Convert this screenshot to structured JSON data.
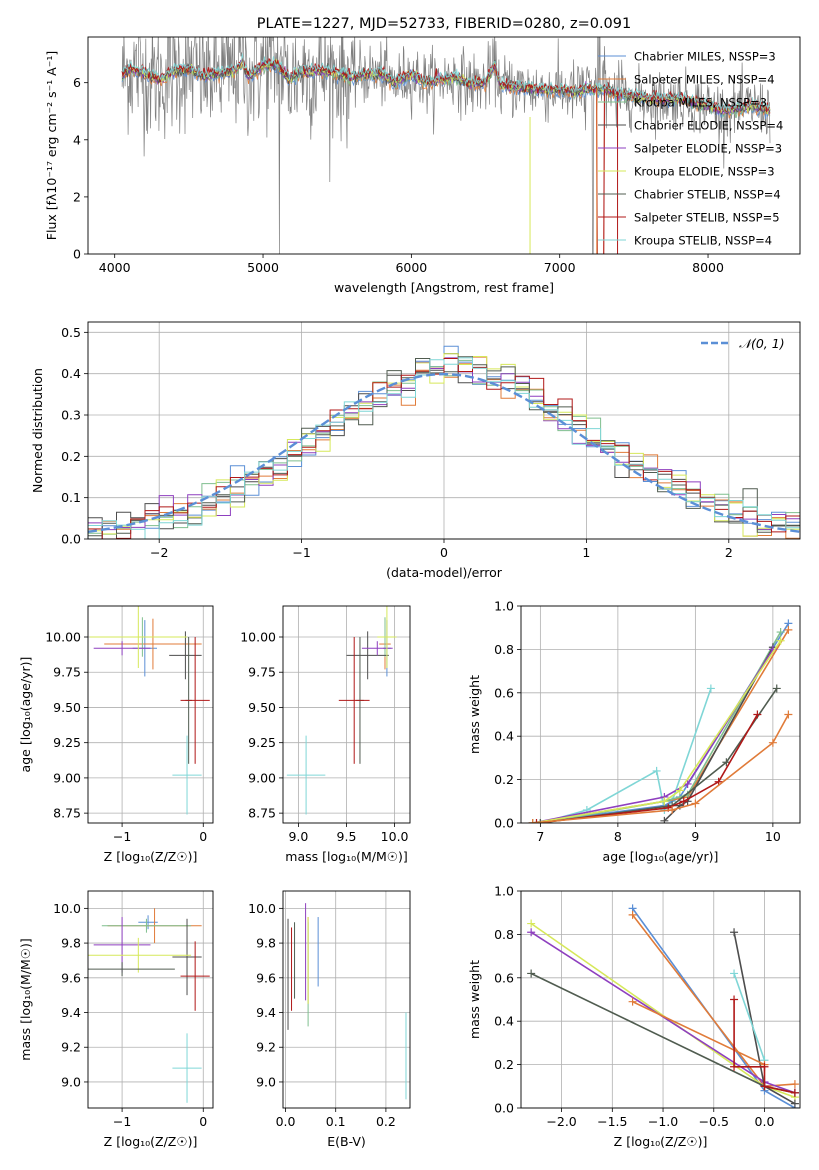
{
  "colors": {
    "Chabrier MILES": "#5b8fd6",
    "Salpeter MILES": "#e07b39",
    "Kroupa MILES": "#7fbf8e",
    "Chabrier ELODIE": "#4d4d4d",
    "Salpeter ELODIE": "#8e3fbf",
    "Kroupa ELODIE": "#d6e85a",
    "Chabrier STELIB": "#505c50",
    "Salpeter STELIB": "#b01818",
    "Kroupa STELIB": "#7fd6d6",
    "normal": "#5b8fd6",
    "data": "#7f7f7f"
  },
  "chart_data": [
    {
      "id": "spectrum",
      "type": "line",
      "title": "PLATE=1227, MJD=52733, FIBERID=0280, z=0.091",
      "xlabel": "wavelength [Angstrom, rest frame]",
      "ylabel": "Flux [fλ10⁻¹⁷ erg cm⁻² s⁻¹ A⁻¹]",
      "xlim": [
        3820,
        8620
      ],
      "ylim": [
        0,
        7.6
      ],
      "xticks": [
        4000,
        5000,
        6000,
        7000,
        8000
      ],
      "yticks": [
        0,
        2,
        4,
        6
      ],
      "legend": "top-right",
      "series": [
        {
          "name": "Chabrier MILES, NSSP=3"
        },
        {
          "name": "Salpeter MILES, NSSP=4"
        },
        {
          "name": "Kroupa MILES, NSSP=3"
        },
        {
          "name": "Chabrier ELODIE, NSSP=4"
        },
        {
          "name": "Salpeter ELODIE, NSSP=3"
        },
        {
          "name": "Kroupa ELODIE, NSSP=3"
        },
        {
          "name": "Chabrier STELIB, NSSP=4"
        },
        {
          "name": "Salpeter STELIB, NSSP=5"
        },
        {
          "name": "Kroupa STELIB, NSSP=4"
        }
      ],
      "model_curve": {
        "x": [
          4050,
          4100,
          4200,
          4300,
          4400,
          4500,
          4600,
          4700,
          4800,
          4860,
          4900,
          5000,
          5100,
          5180,
          5250,
          5300,
          5400,
          5500,
          5600,
          5700,
          5800,
          5890,
          6000,
          6100,
          6200,
          6300,
          6400,
          6500,
          6563,
          6600,
          6700,
          6800,
          6900,
          7000,
          7100,
          7200,
          7300,
          7400,
          7500,
          7600,
          7700,
          7800,
          7900,
          8000,
          8100,
          8200,
          8300,
          8420
        ],
        "y": [
          6.2,
          6.5,
          6.3,
          6.1,
          6.4,
          6.5,
          6.2,
          6.3,
          6.4,
          6.7,
          6.2,
          6.6,
          6.6,
          6.1,
          6.4,
          6.4,
          6.4,
          6.3,
          6.2,
          6.3,
          6.3,
          6.0,
          6.3,
          6.0,
          6.1,
          6.2,
          5.95,
          6.0,
          6.6,
          5.9,
          5.85,
          5.8,
          5.75,
          5.75,
          5.65,
          5.8,
          5.75,
          5.6,
          5.5,
          5.45,
          5.4,
          5.45,
          5.3,
          5.2,
          5.0,
          5.1,
          5.2,
          5.0
        ]
      }
    },
    {
      "id": "residuals",
      "type": "line",
      "xlabel": "(data-model)/error",
      "ylabel": "Normed distribution",
      "xlim": [
        -2.5,
        2.5
      ],
      "ylim": [
        0,
        0.525
      ],
      "xticks": [
        -2,
        -1,
        0,
        1,
        2
      ],
      "yticks": [
        0.0,
        0.1,
        0.2,
        0.3,
        0.4,
        0.5
      ],
      "legend": "top-right",
      "normal_label": "𝒩(0, 1)",
      "bin_centers": [
        -2.45,
        -2.35,
        -2.25,
        -2.15,
        -2.05,
        -1.95,
        -1.85,
        -1.75,
        -1.65,
        -1.55,
        -1.45,
        -1.35,
        -1.25,
        -1.15,
        -1.05,
        -0.95,
        -0.85,
        -0.75,
        -0.65,
        -0.55,
        -0.45,
        -0.35,
        -0.25,
        -0.15,
        -0.05,
        0.05,
        0.15,
        0.25,
        0.35,
        0.45,
        0.55,
        0.65,
        0.75,
        0.85,
        0.95,
        1.05,
        1.15,
        1.25,
        1.35,
        1.45,
        1.55,
        1.65,
        1.75,
        1.85,
        1.95,
        2.05,
        2.15,
        2.25,
        2.35,
        2.45
      ],
      "histogram_reference": [
        0.017,
        0.022,
        0.028,
        0.034,
        0.043,
        0.053,
        0.064,
        0.077,
        0.092,
        0.108,
        0.125,
        0.144,
        0.163,
        0.183,
        0.206,
        0.228,
        0.251,
        0.274,
        0.298,
        0.322,
        0.345,
        0.368,
        0.388,
        0.404,
        0.416,
        0.422,
        0.42,
        0.41,
        0.396,
        0.381,
        0.362,
        0.34,
        0.317,
        0.294,
        0.27,
        0.247,
        0.224,
        0.202,
        0.181,
        0.161,
        0.142,
        0.124,
        0.108,
        0.092,
        0.078,
        0.066,
        0.055,
        0.046,
        0.037,
        0.03
      ]
    },
    {
      "id": "age_vs_Z",
      "type": "scatter",
      "xlabel": "Z [log₁₀(Z/Z☉)]",
      "ylabel": "age  [log₁₀(age/yr)]",
      "xlim": [
        -1.42,
        0.12
      ],
      "ylim": [
        8.68,
        10.22
      ],
      "xticks": [
        -1,
        0
      ],
      "yticks": [
        8.75,
        9.0,
        9.25,
        9.5,
        9.75,
        10.0
      ],
      "points": [
        {
          "series": "Chabrier MILES",
          "x": -0.72,
          "xerr": 0.15,
          "y": 9.92,
          "yerr": 0.2
        },
        {
          "series": "Salpeter MILES",
          "x": -0.62,
          "xerr": 0.6,
          "y": 9.95,
          "yerr": 0.18
        },
        {
          "series": "Kroupa MILES",
          "x": -0.75,
          "xerr": 0.55,
          "y": 10.0,
          "yerr": 0.14
        },
        {
          "series": "Chabrier ELODIE",
          "x": -0.22,
          "xerr": 0.2,
          "y": 9.87,
          "yerr": 0.17
        },
        {
          "series": "Salpeter ELODIE",
          "x": -1.0,
          "xerr": 0.35,
          "y": 9.92,
          "yerr": 0.05
        },
        {
          "series": "Kroupa ELODIE",
          "x": -0.8,
          "xerr": 0.6,
          "y": 10.0,
          "yerr": 0.22
        },
        {
          "series": "Chabrier STELIB",
          "x": -0.18,
          "xerr": 0.04,
          "y": 9.55,
          "yerr": 0.45
        },
        {
          "series": "Salpeter STELIB",
          "x": -0.1,
          "xerr": 0.18,
          "y": 9.55,
          "yerr": 0.45
        },
        {
          "series": "Kroupa STELIB",
          "x": -0.2,
          "xerr": 0.18,
          "y": 9.02,
          "yerr": 0.28
        }
      ]
    },
    {
      "id": "age_vs_mass",
      "type": "scatter",
      "xlabel": "mass [log₁₀(M/M☉)]",
      "ylabel": "",
      "xlim": [
        8.84,
        10.16
      ],
      "ylim": [
        8.68,
        10.22
      ],
      "xticks": [
        9.0,
        9.5,
        10.0
      ],
      "yticks": [
        8.75,
        9.0,
        9.25,
        9.5,
        9.75,
        10.0
      ],
      "points": [
        {
          "series": "Chabrier MILES",
          "x": 9.92,
          "xerr": 0.04,
          "y": 9.92,
          "yerr": 0.2
        },
        {
          "series": "Salpeter MILES",
          "x": 9.9,
          "xerr": 0.06,
          "y": 9.95,
          "yerr": 0.18
        },
        {
          "series": "Kroupa MILES",
          "x": 9.9,
          "xerr": 0.04,
          "y": 10.0,
          "yerr": 0.14
        },
        {
          "series": "Chabrier ELODIE",
          "x": 9.72,
          "xerr": 0.22,
          "y": 9.87,
          "yerr": 0.17
        },
        {
          "series": "Salpeter ELODIE",
          "x": 9.82,
          "xerr": 0.16,
          "y": 9.92,
          "yerr": 0.05
        },
        {
          "series": "Kroupa ELODIE",
          "x": 9.92,
          "xerr": 0.1,
          "y": 10.0,
          "yerr": 0.22
        },
        {
          "series": "Chabrier STELIB",
          "x": 9.64,
          "xerr": 0.04,
          "y": 9.55,
          "yerr": 0.45
        },
        {
          "series": "Salpeter STELIB",
          "x": 9.58,
          "xerr": 0.16,
          "y": 9.55,
          "yerr": 0.45
        },
        {
          "series": "Kroupa STELIB",
          "x": 9.08,
          "xerr": 0.2,
          "y": 9.02,
          "yerr": 0.28
        }
      ]
    },
    {
      "id": "weight_vs_age",
      "type": "line",
      "xlabel": "age  [log₁₀(age/yr)]",
      "ylabel": "mass weight",
      "xlim": [
        6.75,
        10.35
      ],
      "ylim": [
        0,
        1.0
      ],
      "xticks": [
        7,
        8,
        9,
        10
      ],
      "yticks": [
        0.0,
        0.2,
        0.4,
        0.6,
        0.8,
        1.0
      ],
      "series": [
        {
          "series": "Kroupa STELIB",
          "x": [
            7.0,
            7.6,
            8.5,
            8.6,
            8.7,
            9.2
          ],
          "y": [
            0.0,
            0.06,
            0.24,
            0.06,
            0.1,
            0.62
          ]
        },
        {
          "series": "Chabrier MILES",
          "x": [
            6.9,
            8.6,
            8.8,
            10.2
          ],
          "y": [
            0.0,
            0.08,
            0.12,
            0.92
          ]
        },
        {
          "series": "Salpeter MILES",
          "x": [
            6.9,
            8.6,
            8.9,
            10.2
          ],
          "y": [
            0.0,
            0.1,
            0.12,
            0.89
          ]
        },
        {
          "series": "Kroupa MILES",
          "x": [
            7.0,
            8.6,
            8.9,
            10.1
          ],
          "y": [
            0.0,
            0.1,
            0.13,
            0.88
          ]
        },
        {
          "series": "Chabrier ELODIE",
          "x": [
            8.6,
            8.8,
            8.9,
            10.0
          ],
          "y": [
            0.01,
            0.08,
            0.1,
            0.81
          ]
        },
        {
          "series": "Salpeter ELODIE",
          "x": [
            6.9,
            8.6,
            8.9,
            10.0
          ],
          "y": [
            0.0,
            0.12,
            0.18,
            0.8
          ]
        },
        {
          "series": "Kroupa ELODIE",
          "x": [
            6.9,
            8.6,
            8.8,
            10.1
          ],
          "y": [
            0.0,
            0.1,
            0.15,
            0.84
          ]
        },
        {
          "series": "Chabrier STELIB",
          "x": [
            7.0,
            8.7,
            9.4,
            10.05
          ],
          "y": [
            0.0,
            0.08,
            0.28,
            0.62
          ]
        },
        {
          "series": "Salpeter STELIB",
          "x": [
            6.95,
            8.65,
            8.85,
            9.3,
            9.8
          ],
          "y": [
            0.0,
            0.07,
            0.1,
            0.19,
            0.5
          ]
        },
        {
          "series": "Salpeter MILES",
          "x": [
            6.9,
            8.7,
            9.0,
            10.0,
            10.2
          ],
          "y": [
            0.0,
            0.06,
            0.09,
            0.37,
            0.5
          ]
        }
      ]
    },
    {
      "id": "mass_vs_Z",
      "type": "scatter",
      "xlabel": "Z [log₁₀(Z/Z☉)]",
      "ylabel": "mass [log₁₀(M/M☉)]",
      "xlim": [
        -1.42,
        0.12
      ],
      "ylim": [
        8.85,
        10.1
      ],
      "xticks": [
        -1,
        0
      ],
      "yticks": [
        9.0,
        9.2,
        9.4,
        9.6,
        9.8,
        10.0
      ],
      "points": [
        {
          "series": "Chabrier MILES",
          "x": -0.68,
          "xerr": 0.12,
          "y": 9.92,
          "yerr": 0.04
        },
        {
          "series": "Salpeter MILES",
          "x": -0.6,
          "xerr": 0.58,
          "y": 9.9,
          "yerr": 0.1
        },
        {
          "series": "Kroupa MILES",
          "x": -0.7,
          "xerr": 0.55,
          "y": 9.9,
          "yerr": 0.04
        },
        {
          "series": "Chabrier ELODIE",
          "x": -0.2,
          "xerr": 0.18,
          "y": 9.72,
          "yerr": 0.22
        },
        {
          "series": "Salpeter ELODIE",
          "x": -1.0,
          "xerr": 0.35,
          "y": 9.79,
          "yerr": 0.16
        },
        {
          "series": "Kroupa ELODIE",
          "x": -0.8,
          "xerr": 0.65,
          "y": 9.73,
          "yerr": 0.1
        },
        {
          "series": "Chabrier STELIB",
          "x": -1.0,
          "xerr": 0.65,
          "y": 9.65,
          "yerr": 0.04
        },
        {
          "series": "Salpeter STELIB",
          "x": -0.1,
          "xerr": 0.18,
          "y": 9.61,
          "yerr": 0.2
        },
        {
          "series": "Kroupa STELIB",
          "x": -0.2,
          "xerr": 0.18,
          "y": 9.08,
          "yerr": 0.2
        }
      ]
    },
    {
      "id": "mass_vs_ebv",
      "type": "scatter",
      "xlabel": "E(B-V)",
      "ylabel": "",
      "xlim": [
        -0.005,
        0.248
      ],
      "ylim": [
        8.85,
        10.1
      ],
      "xticks": [
        0.0,
        0.1,
        0.2
      ],
      "yticks": [
        9.0,
        9.2,
        9.4,
        9.6,
        9.8,
        10.0
      ],
      "points": [
        {
          "series": "Chabrier MILES",
          "x": 0.065,
          "y": 9.75,
          "yerr": 0.2
        },
        {
          "series": "Salpeter MILES",
          "x": 0.045,
          "y": 9.7,
          "yerr": 0.25
        },
        {
          "series": "Kroupa MILES",
          "x": 0.045,
          "y": 9.62,
          "yerr": 0.3
        },
        {
          "series": "Chabrier ELODIE",
          "x": 0.005,
          "y": 9.62,
          "yerr": 0.32
        },
        {
          "series": "Salpeter ELODIE",
          "x": 0.04,
          "y": 9.75,
          "yerr": 0.28
        },
        {
          "series": "Kroupa ELODIE",
          "x": 0.045,
          "y": 9.7,
          "yerr": 0.25
        },
        {
          "series": "Chabrier STELIB",
          "x": 0.018,
          "y": 9.7,
          "yerr": 0.22
        },
        {
          "series": "Salpeter STELIB",
          "x": 0.012,
          "y": 9.65,
          "yerr": 0.24
        },
        {
          "series": "Kroupa STELIB",
          "x": 0.24,
          "y": 9.15,
          "yerr": 0.25
        }
      ]
    },
    {
      "id": "weight_vs_Z",
      "type": "line",
      "xlabel": "Z [log₁₀(Z/Z☉)]",
      "ylabel": "mass weight",
      "xlim": [
        -2.4,
        0.35
      ],
      "ylim": [
        0,
        1.0
      ],
      "xticks": [
        -2.0,
        -1.5,
        -1.0,
        -0.5,
        0.0
      ],
      "yticks": [
        0.0,
        0.2,
        0.4,
        0.6,
        0.8,
        1.0
      ],
      "series": [
        {
          "series": "Chabrier MILES",
          "x": [
            -1.3,
            0.0,
            0.3
          ],
          "y": [
            0.92,
            0.08,
            0.0
          ]
        },
        {
          "series": "Salpeter MILES",
          "x": [
            -1.3,
            0.0,
            0.3
          ],
          "y": [
            0.89,
            0.1,
            0.11
          ]
        },
        {
          "series": "Kroupa ELODIE",
          "x": [
            -2.3,
            0.0,
            0.3
          ],
          "y": [
            0.85,
            0.1,
            0.05
          ]
        },
        {
          "series": "Salpeter ELODIE",
          "x": [
            -2.3,
            0.0,
            0.3
          ],
          "y": [
            0.81,
            0.12,
            0.07
          ]
        },
        {
          "series": "Chabrier STELIB",
          "x": [
            -2.3,
            0.0,
            0.3
          ],
          "y": [
            0.62,
            0.1,
            0.07
          ]
        },
        {
          "series": "Chabrier ELODIE",
          "x": [
            -0.3,
            0.0,
            0.3
          ],
          "y": [
            0.81,
            0.1,
            0.02
          ]
        },
        {
          "series": "Kroupa STELIB",
          "x": [
            -0.3,
            0.0
          ],
          "y": [
            0.62,
            0.22
          ]
        },
        {
          "series": "Salpeter MILES",
          "x": [
            -1.3,
            0.0
          ],
          "y": [
            0.49,
            0.2
          ]
        },
        {
          "series": "Salpeter STELIB",
          "x": [
            -0.3,
            -0.3,
            0.0,
            0.0,
            0.3
          ],
          "y": [
            0.5,
            0.19,
            0.19,
            0.1,
            0.07
          ]
        }
      ]
    }
  ]
}
